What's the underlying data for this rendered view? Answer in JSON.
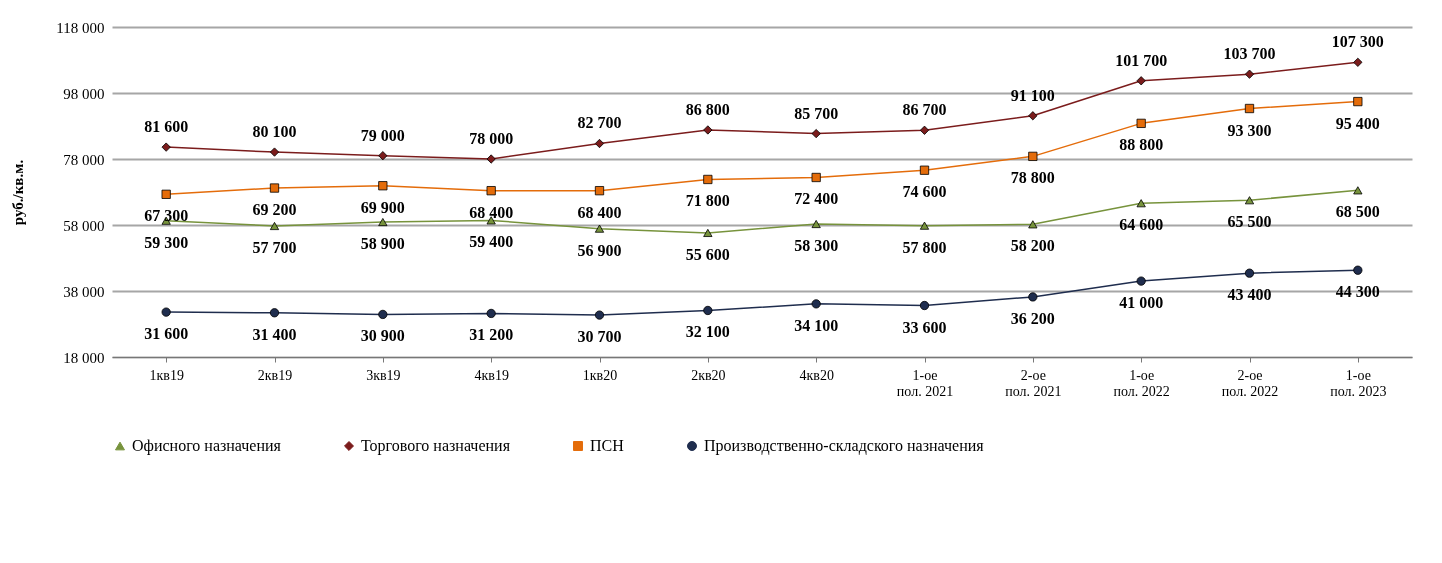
{
  "chart_data": {
    "type": "line",
    "ylabel": "руб./кв.м.",
    "categories": [
      "1кв19",
      "2кв19",
      "3кв19",
      "4кв19",
      "1кв20",
      "2кв20",
      "4кв20",
      "1-ое\nпол. 2021",
      "2-ое\nпол. 2021",
      "1-ое\nпол. 2022",
      "2-ое\nпол. 2022",
      "1-ое\nпол. 2023"
    ],
    "series": [
      {
        "name": "Офисного назначения",
        "color": "#77933c",
        "marker": "triangle",
        "values": [
          59300,
          57700,
          58900,
          59400,
          56900,
          55600,
          58300,
          57800,
          58200,
          64600,
          65500,
          68500
        ],
        "value_labels": [
          "59 300",
          "57 700",
          "58 900",
          "59 400",
          "56 900",
          "55 600",
          "58 300",
          "57 800",
          "58 200",
          "64 600",
          "65 500",
          "68 500"
        ]
      },
      {
        "name": "Торгового назначения",
        "color": "#7b1c1c",
        "marker": "diamond",
        "values": [
          81600,
          80100,
          79000,
          78000,
          82700,
          86800,
          85700,
          86700,
          91100,
          101700,
          103700,
          107300
        ],
        "value_labels": [
          "81 600",
          "80 100",
          "79 000",
          "78 000",
          "82 700",
          "86 800",
          "85 700",
          "86 700",
          "91 100",
          "101 700",
          "103 700",
          "107 300"
        ]
      },
      {
        "name": "ПСН",
        "color": "#e46c0a",
        "marker": "square",
        "values": [
          67300,
          69200,
          69900,
          68400,
          68400,
          71800,
          72400,
          74600,
          78800,
          88800,
          93300,
          95400
        ],
        "value_labels": [
          "67 300",
          "69 200",
          "69 900",
          "68 400",
          "68 400",
          "71 800",
          "72 400",
          "74 600",
          "78 800",
          "88 800",
          "93 300",
          "95 400"
        ]
      },
      {
        "name": "Производственно-складского назначения",
        "color": "#1f2d4e",
        "marker": "circle",
        "values": [
          31600,
          31400,
          30900,
          31200,
          30700,
          32100,
          34100,
          33600,
          36200,
          41000,
          43400,
          44300
        ],
        "value_labels": [
          "31 600",
          "31 400",
          "30 900",
          "31 200",
          "30 700",
          "32 100",
          "34 100",
          "33 600",
          "36 200",
          "41 000",
          "43 400",
          "44 300"
        ]
      }
    ],
    "ylim": [
      18000,
      118000
    ],
    "yticks": [
      {
        "value": 18000,
        "label": "18 000"
      },
      {
        "value": 38000,
        "label": "38 000"
      },
      {
        "value": 58000,
        "label": "58 000"
      },
      {
        "value": 78000,
        "label": "78 000"
      },
      {
        "value": 98000,
        "label": "98 000"
      },
      {
        "value": 118000,
        "label": "118 000"
      }
    ],
    "grid": "y",
    "legend": "bottom",
    "line_style": "solid"
  }
}
